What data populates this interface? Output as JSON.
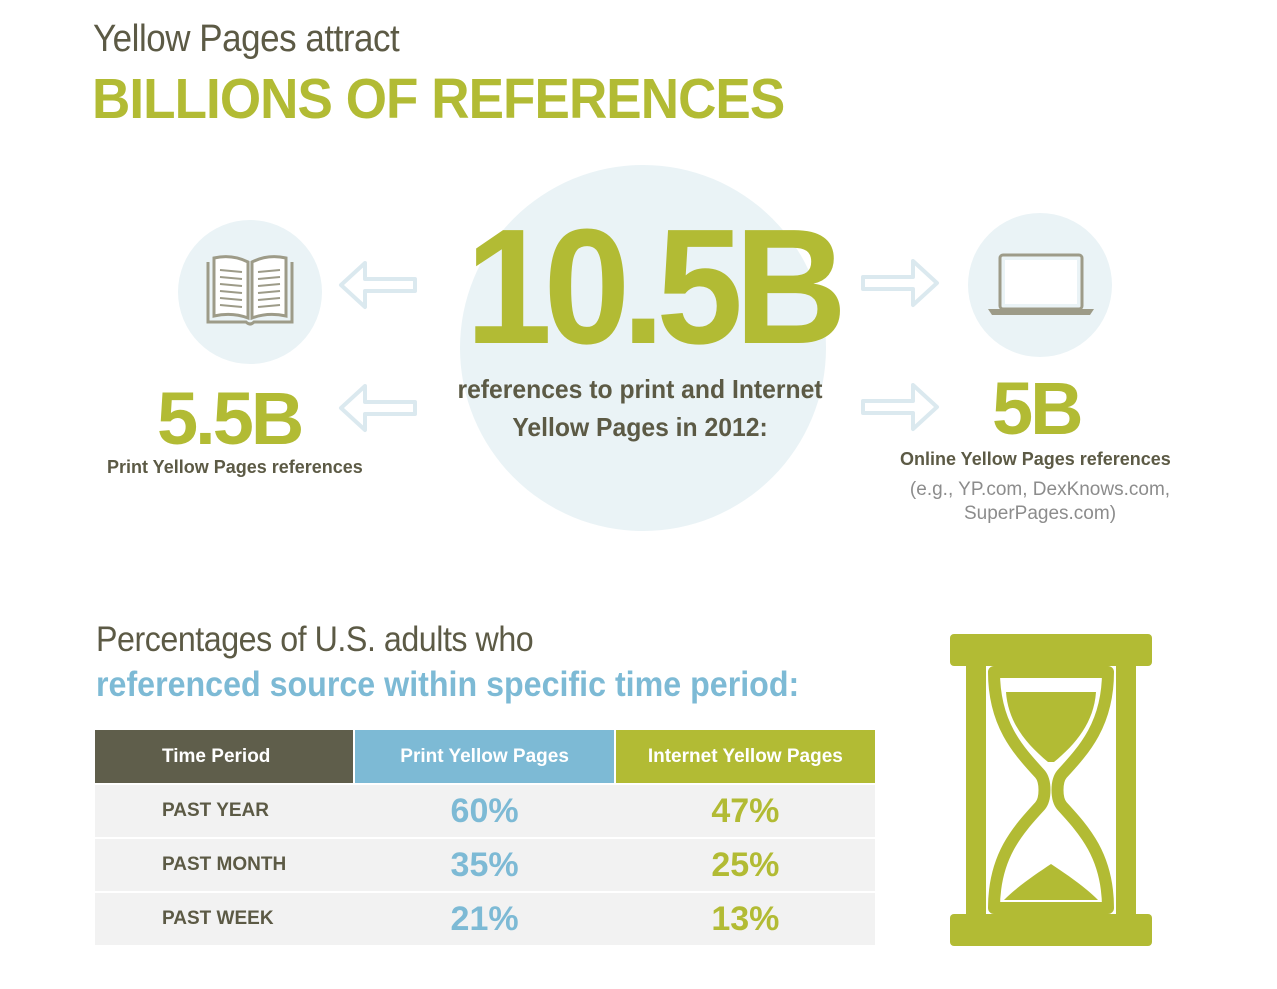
{
  "header": {
    "subtitle": "Yellow Pages attract",
    "title": "BILLIONS OF REFERENCES"
  },
  "hero": {
    "number": "10.5B",
    "caption_line1": "references to print and Internet",
    "caption_line2": "Yellow Pages in 2012:"
  },
  "print": {
    "icon": "open-book-icon",
    "number": "5.5B",
    "label": "Print Yellow Pages references"
  },
  "online": {
    "icon": "laptop-icon",
    "number": "5B",
    "label": "Online Yellow Pages references",
    "note_line1": "(e.g., YP.com, DexKnows.com,",
    "note_line2": "SuperPages.com)"
  },
  "section": {
    "line1": "Percentages of U.S. adults who",
    "line2": "referenced source within specific time period:"
  },
  "table": {
    "headers": [
      "Time Period",
      "Print Yellow Pages",
      "Internet Yellow Pages"
    ],
    "rows": [
      [
        "PAST YEAR",
        "60%",
        "47%"
      ],
      [
        "PAST MONTH",
        "35%",
        "25%"
      ],
      [
        "PAST WEEK",
        "21%",
        "13%"
      ]
    ]
  },
  "decor": {
    "hourglass_icon": "hourglass-icon",
    "arrow_icon": "arrow-icon"
  },
  "colors": {
    "green": "#b2bb34",
    "blue": "#7dbad5",
    "dark": "#5f5e4b",
    "circle": "#eaf3f6",
    "row_bg": "#f2f2f2"
  }
}
